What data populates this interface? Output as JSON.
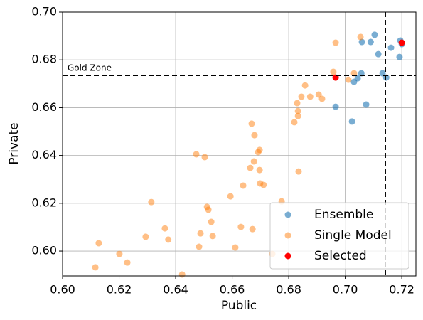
{
  "chart_data": {
    "type": "scatter",
    "x_label": "Public",
    "y_label": "Private",
    "xlim": [
      0.6,
      0.725
    ],
    "ylim": [
      0.5896,
      0.7
    ],
    "xticks": [
      {
        "value": 0.6,
        "label": "0.60"
      },
      {
        "value": 0.62,
        "label": "0.62"
      },
      {
        "value": 0.64,
        "label": "0.64"
      },
      {
        "value": 0.66,
        "label": "0.66"
      },
      {
        "value": 0.68,
        "label": "0.68"
      },
      {
        "value": 0.7,
        "label": "0.70"
      },
      {
        "value": 0.72,
        "label": "0.72"
      }
    ],
    "yticks": [
      {
        "value": 0.6,
        "label": "0.60"
      },
      {
        "value": 0.62,
        "label": "0.62"
      },
      {
        "value": 0.64,
        "label": "0.64"
      },
      {
        "value": 0.66,
        "label": "0.66"
      },
      {
        "value": 0.68,
        "label": "0.68"
      },
      {
        "value": 0.7,
        "label": "0.70"
      }
    ],
    "grid": true,
    "legend": "lower right",
    "hline": 0.6735,
    "vline": 0.7142,
    "annotation": "Gold Zone",
    "series": [
      {
        "name": "Ensemble",
        "color": "#1f77b4",
        "opacity": 0.6,
        "x": [
          0.7104,
          0.709,
          0.7059,
          0.7117,
          0.7162,
          0.7195,
          0.72,
          0.7192,
          0.7057,
          0.7132,
          0.7145,
          0.7044,
          0.7031,
          0.6966,
          0.7074,
          0.7024
        ],
        "values": [
          0.6905,
          0.6875,
          0.6875,
          0.6824,
          0.6851,
          0.6881,
          0.6866,
          0.6812,
          0.6744,
          0.6744,
          0.6726,
          0.6723,
          0.6708,
          0.6604,
          0.6613,
          0.6542
        ]
      },
      {
        "name": "Single Model",
        "color": "#ff7f0e",
        "opacity": 0.5,
        "x": [
          0.7054,
          0.6966,
          0.6958,
          0.7011,
          0.7031,
          0.6858,
          0.6906,
          0.6845,
          0.6876,
          0.6918,
          0.683,
          0.6833,
          0.6833,
          0.682,
          0.6669,
          0.6679,
          0.6697,
          0.6692,
          0.6473,
          0.6503,
          0.6677,
          0.6664,
          0.6697,
          0.6835,
          0.6699,
          0.6711,
          0.6639,
          0.6594,
          0.6775,
          0.6314,
          0.6511,
          0.6516,
          0.6526,
          0.6631,
          0.6672,
          0.6362,
          0.6488,
          0.6531,
          0.6294,
          0.6374,
          0.6128,
          0.6483,
          0.6611,
          0.6742,
          0.6201,
          0.6229,
          0.6116,
          0.6423
        ],
        "values": [
          0.6896,
          0.6872,
          0.675,
          0.6717,
          0.6744,
          0.6693,
          0.6655,
          0.6646,
          0.6646,
          0.6637,
          0.6619,
          0.6586,
          0.6565,
          0.6539,
          0.6533,
          0.6485,
          0.6423,
          0.6414,
          0.6405,
          0.6393,
          0.6375,
          0.6348,
          0.6339,
          0.6333,
          0.6283,
          0.6277,
          0.6274,
          0.6229,
          0.6208,
          0.6205,
          0.6185,
          0.6173,
          0.6122,
          0.6101,
          0.6092,
          0.6095,
          0.6074,
          0.6063,
          0.606,
          0.6048,
          0.6033,
          0.6018,
          0.6015,
          0.5988,
          0.5988,
          0.5952,
          0.5932,
          0.5902
        ]
      },
      {
        "name": "Selected",
        "color": "#ff0000",
        "opacity": 1,
        "x": [
          0.6966,
          0.72
        ],
        "values": [
          0.6726,
          0.6872
        ]
      }
    ]
  }
}
